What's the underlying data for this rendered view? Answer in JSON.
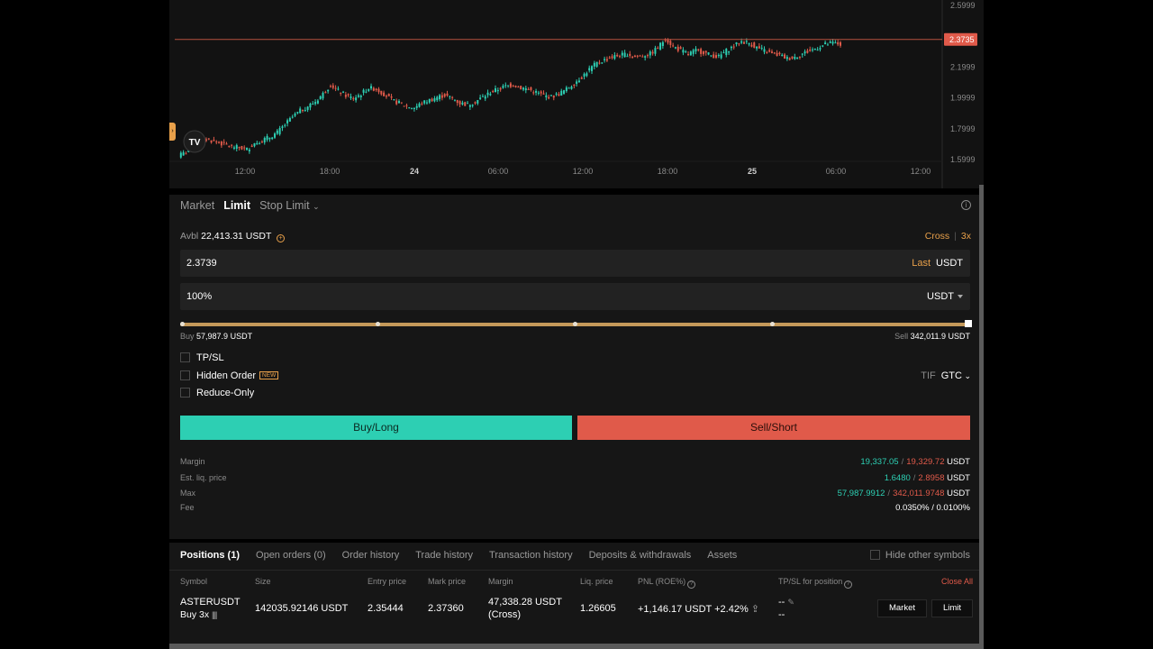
{
  "chart": {
    "price_levels": [
      "2.5999",
      "2.1999",
      "1.9999",
      "1.7999",
      "1.5999"
    ],
    "current_price_tag": "2.3735",
    "time_labels": [
      "12:00",
      "18:00",
      "24",
      "06:00",
      "12:00",
      "18:00",
      "25",
      "06:00",
      "12:00"
    ],
    "logo_text": "TV",
    "colors": {
      "up": "#2dcfb3",
      "down": "#e05a4a",
      "priceline": "#b5513f"
    },
    "series_close": [
      1.62,
      1.64,
      1.7,
      1.73,
      1.72,
      1.71,
      1.69,
      1.68,
      1.67,
      1.66,
      1.7,
      1.72,
      1.74,
      1.77,
      1.82,
      1.87,
      1.91,
      1.94,
      1.97,
      2.02,
      2.08,
      2.04,
      2.01,
      1.99,
      2.02,
      2.06,
      2.05,
      2.02,
      1.98,
      1.96,
      1.94,
      1.93,
      1.96,
      1.98,
      2.0,
      2.01,
      1.99,
      1.96,
      1.95,
      1.97,
      2.0,
      2.03,
      2.05,
      2.07,
      2.08,
      2.06,
      2.05,
      2.03,
      2.01,
      2.0,
      2.02,
      2.05,
      2.09,
      2.13,
      2.18,
      2.22,
      2.24,
      2.26,
      2.27,
      2.28,
      2.26,
      2.27,
      2.28,
      2.32,
      2.38,
      2.33,
      2.3,
      2.28,
      2.3,
      2.29,
      2.27,
      2.26,
      2.3,
      2.33,
      2.36,
      2.35,
      2.32,
      2.3,
      2.28,
      2.27,
      2.25,
      2.26,
      2.28,
      2.3,
      2.32,
      2.34,
      2.35,
      2.34
    ]
  },
  "order_form": {
    "tabs": [
      "Market",
      "Limit",
      "Stop Limit"
    ],
    "active_tab": "Limit",
    "avbl_label": "Avbl",
    "avbl_value": "22,413.31 USDT",
    "margin_mode": "Cross",
    "leverage": "3x",
    "price_value": "2.3739",
    "price_hint": "Last",
    "price_unit": "USDT",
    "size_value": "100%",
    "size_unit": "USDT",
    "slider_percent": 100,
    "buy_label": "Buy",
    "buy_value": "57,987.9 USDT",
    "sell_label": "Sell",
    "sell_value": "342,011.9 USDT",
    "tpsl_label": "TP/SL",
    "hidden_order_label": "Hidden Order",
    "new_badge": "NEW",
    "reduce_only_label": "Reduce-Only",
    "tif_label": "TIF",
    "tif_value": "GTC",
    "buy_button": "Buy/Long",
    "sell_button": "Sell/Short",
    "stats": {
      "margin_label": "Margin",
      "margin_buy": "19,337.05",
      "margin_sell": "19,329.72",
      "margin_unit": "USDT",
      "liq_label": "Est. liq. price",
      "liq_buy": "1.6480",
      "liq_sell": "2.8958",
      "liq_unit": "USDT",
      "max_label": "Max",
      "max_buy": "57,987.9912",
      "max_sell": "342,011.9748",
      "max_unit": "USDT",
      "fee_label": "Fee",
      "fee_value": "0.0350% / 0.0100%"
    }
  },
  "positions": {
    "tabs": [
      "Positions (1)",
      "Open orders (0)",
      "Order history",
      "Trade history",
      "Transaction history",
      "Deposits & withdrawals",
      "Assets"
    ],
    "hide_other_label": "Hide other symbols",
    "headers": {
      "symbol": "Symbol",
      "size": "Size",
      "entry": "Entry price",
      "mark": "Mark price",
      "margin": "Margin",
      "liq": "Liq. price",
      "pnl": "PNL (ROE%)",
      "tpsl": "TP/SL for position",
      "close_all": "Close All"
    },
    "row": {
      "symbol": "ASTERUSDT",
      "side": "Buy 3x",
      "size": "142035.92146 USDT",
      "entry": "2.35444",
      "mark": "2.37360",
      "margin": "47,338.28 USDT",
      "margin_mode": "(Cross)",
      "liq": "1.26605",
      "pnl": "+1,146.17 USDT",
      "roe": "+2.42%",
      "tp": "--",
      "sl": "--",
      "market_btn": "Market",
      "limit_btn": "Limit"
    }
  }
}
